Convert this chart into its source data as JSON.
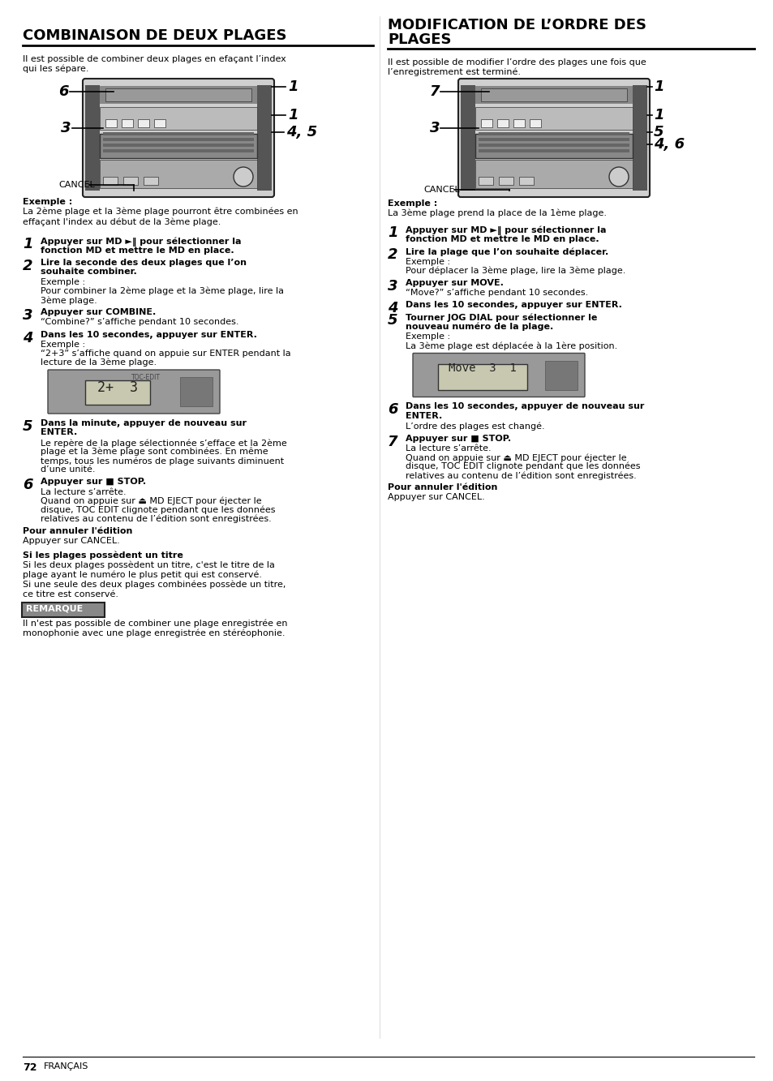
{
  "bg_color": "#ffffff",
  "page_width": 9.54,
  "page_height": 13.33,
  "left_title": "COMBINAISON DE DEUX PLAGES",
  "right_title_line1": "MODIFICATION DE L’ORDRE DES",
  "right_title_line2": "PLAGES",
  "left_intro": "Il est possible de combiner deux plages en efaçant l’index\nqui les sépare.",
  "right_intro": "Il est possible de modifier l’ordre des plages une fois que\nl’enregistrement est terminé.",
  "left_steps": [
    {
      "num": "1",
      "bold": "Appuyer sur MD ►‖ pour sélectionner la\nfonction MD et mettre le MD en place.",
      "normal": ""
    },
    {
      "num": "2",
      "bold": "Lire la seconde des deux plages que l’on\nsouhaite combiner.",
      "normal": "Exemple :\nPour combiner la 2ème plage et la 3ème plage, lire la\n3ème plage."
    },
    {
      "num": "3",
      "bold": "Appuyer sur COMBINE.",
      "normal": "“Combine?” s’affiche pendant 10 secondes."
    },
    {
      "num": "4",
      "bold": "Dans les 10 secondes, appuyer sur ENTER.",
      "normal": "Exemple :\n“2+3” s’affiche quand on appuie sur ENTER pendant la\nlecture de la 3ème plage."
    },
    {
      "num": "5",
      "bold": "Dans la minute, appuyer de nouveau sur\nENTER.",
      "normal": "Le repère de la plage sélectionnée s’efface et la 2ème\nplage et la 3ème plage sont combinées. En même\ntemps, tous les numéros de plage suivants diminuent\nd’une unité."
    },
    {
      "num": "6",
      "bold": "Appuyer sur ■ STOP.",
      "normal": "La lecture s’arrête.\nQuand on appuie sur ⏏ MD EJECT pour éjecter le\ndisque, TOC EDIT clignote pendant que les données\nrelatives au contenu de l’édition sont enregistrées."
    }
  ],
  "right_steps": [
    {
      "num": "1",
      "bold": "Appuyer sur MD ►‖ pour sélectionner la\nfonction MD et mettre le MD en place.",
      "normal": ""
    },
    {
      "num": "2",
      "bold": "Lire la plage que l’on souhaite déplacer.",
      "normal": "Exemple :\nPour déplacer la 3ème plage, lire la 3ème plage."
    },
    {
      "num": "3",
      "bold": "Appuyer sur MOVE.",
      "normal": "“Move?” s’affiche pendant 10 secondes."
    },
    {
      "num": "4",
      "bold": "Dans les 10 secondes, appuyer sur ENTER.",
      "normal": ""
    },
    {
      "num": "5",
      "bold": "Tourner JOG DIAL pour sélectionner le\nnouveau numéro de la plage.",
      "normal": "Exemple :\nLa 3ème plage est déplacée à la 1ère position."
    },
    {
      "num": "6",
      "bold": "Dans les 10 secondes, appuyer de nouveau sur\nENTER.",
      "normal": "L’ordre des plages est changé."
    },
    {
      "num": "7",
      "bold": "Appuyer sur ■ STOP.",
      "normal": "La lecture s’arrête.\nQuand on appuie sur ⏏ MD EJECT pour éjecter le\ndisque, TOC EDIT clignote pendant que les données\nrelatives au contenu de l’édition sont enregistrées."
    }
  ],
  "footer": "72  FRANÇAIS"
}
